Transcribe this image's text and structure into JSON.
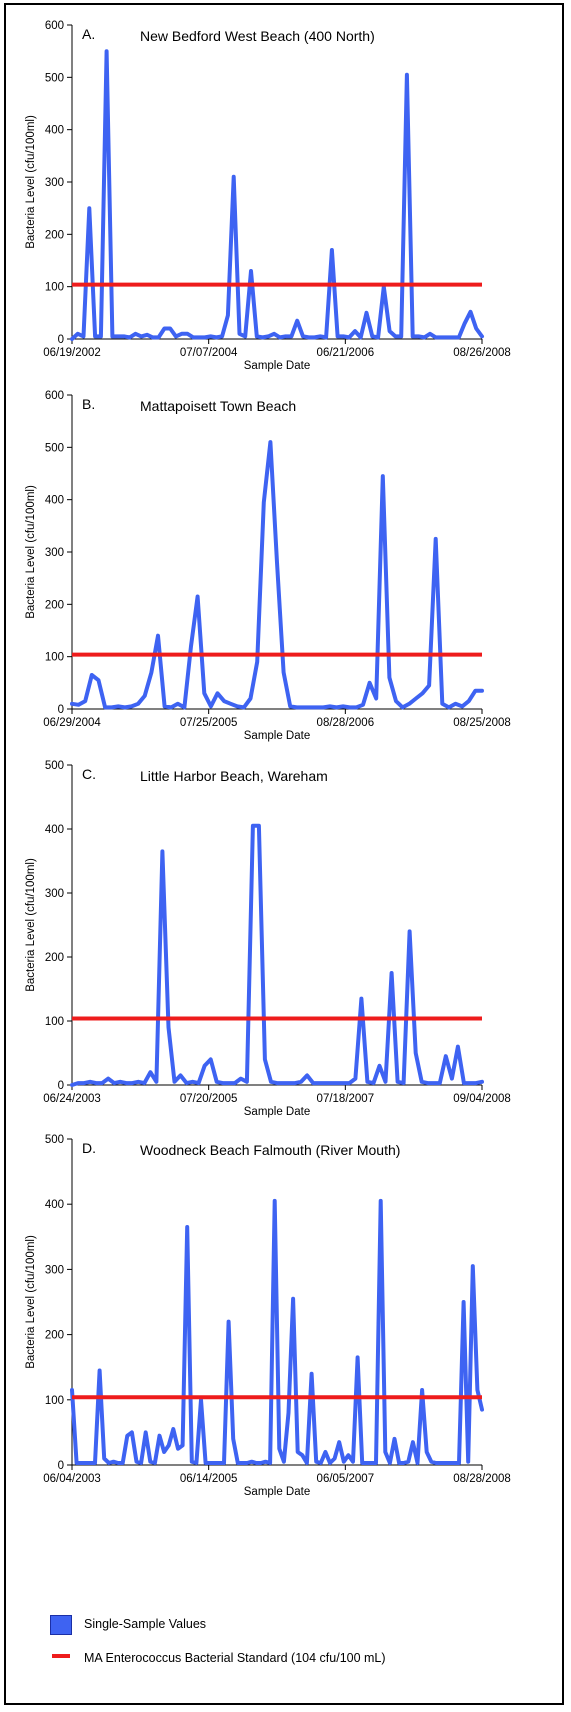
{
  "legend": {
    "series_label": "Single-Sample Values",
    "standard_label": "MA Enterococcus Bacterial Standard (104 cfu/100 mL)"
  },
  "colors": {
    "series": "#3e63f2",
    "standard": "#ee1c1c",
    "axis": "#000000"
  },
  "chart_data": [
    {
      "type": "line",
      "panel_letter": "A.",
      "title": "New Bedford West Beach (400 North)",
      "xlabel": "Sample Date",
      "ylabel": "Bacteria Level (cfu/100ml)",
      "ylim": [
        0,
        600
      ],
      "yticks": [
        0,
        100,
        200,
        300,
        400,
        500,
        600
      ],
      "xtick_labels": [
        "06/19/2002",
        "07/07/2004",
        "06/21/2006",
        "08/26/2008"
      ],
      "standard": 104,
      "values": [
        0,
        10,
        5,
        250,
        5,
        5,
        550,
        5,
        5,
        5,
        3,
        10,
        5,
        8,
        3,
        3,
        20,
        20,
        5,
        10,
        10,
        3,
        3,
        3,
        5,
        3,
        5,
        45,
        310,
        10,
        5,
        130,
        5,
        3,
        5,
        10,
        3,
        5,
        5,
        35,
        5,
        3,
        3,
        5,
        3,
        170,
        5,
        5,
        3,
        15,
        3,
        50,
        5,
        3,
        100,
        15,
        5,
        5,
        505,
        5,
        5,
        3,
        10,
        3,
        3,
        3,
        3,
        3,
        30,
        52,
        20,
        5
      ]
    },
    {
      "type": "line",
      "panel_letter": "B.",
      "title": "Mattapoisett Town Beach",
      "xlabel": "Sample Date",
      "ylabel": "Bacteria Level (cfu/100ml)",
      "ylim": [
        0,
        600
      ],
      "yticks": [
        0,
        100,
        200,
        300,
        400,
        500,
        600
      ],
      "xtick_labels": [
        "06/29/2004",
        "07/25/2005",
        "08/28/2006",
        "08/25/2008"
      ],
      "standard": 104,
      "values": [
        10,
        8,
        15,
        65,
        55,
        3,
        3,
        5,
        3,
        5,
        10,
        25,
        70,
        140,
        5,
        3,
        10,
        3,
        120,
        215,
        30,
        5,
        30,
        15,
        10,
        5,
        3,
        20,
        90,
        395,
        510,
        280,
        70,
        5,
        3,
        3,
        3,
        3,
        3,
        5,
        3,
        5,
        3,
        3,
        8,
        50,
        20,
        445,
        60,
        15,
        3,
        10,
        20,
        30,
        45,
        325,
        10,
        3,
        10,
        5,
        15,
        35,
        35
      ]
    },
    {
      "type": "line",
      "panel_letter": "C.",
      "title": "Little Harbor Beach, Wareham",
      "xlabel": "Sample Date",
      "ylabel": "Bacteria Level (cfu/100ml)",
      "ylim": [
        0,
        500
      ],
      "yticks": [
        0,
        100,
        200,
        300,
        400,
        500
      ],
      "xtick_labels": [
        "06/24/2003",
        "07/20/2005",
        "07/18/2007",
        "09/04/2008"
      ],
      "standard": 104,
      "values": [
        0,
        3,
        3,
        5,
        3,
        3,
        10,
        3,
        5,
        3,
        3,
        5,
        3,
        20,
        5,
        365,
        90,
        5,
        15,
        3,
        5,
        3,
        30,
        40,
        5,
        3,
        3,
        3,
        10,
        5,
        405,
        405,
        40,
        5,
        3,
        3,
        3,
        3,
        5,
        15,
        3,
        3,
        3,
        3,
        3,
        3,
        3,
        10,
        135,
        5,
        3,
        30,
        5,
        175,
        5,
        3,
        240,
        50,
        5,
        3,
        3,
        3,
        45,
        10,
        60,
        3,
        3,
        3,
        5
      ]
    },
    {
      "type": "line",
      "panel_letter": "D.",
      "title": "Woodneck Beach Falmouth (River Mouth)",
      "xlabel": "Sample Date",
      "ylabel": "Bacteria Level (cfu/100ml)",
      "ylim": [
        0,
        500
      ],
      "yticks": [
        0,
        100,
        200,
        300,
        400,
        500
      ],
      "xtick_labels": [
        "06/04/2003",
        "06/14/2005",
        "06/05/2007",
        "08/28/2008"
      ],
      "standard": 104,
      "values": [
        115,
        3,
        3,
        3,
        3,
        3,
        145,
        10,
        3,
        5,
        3,
        3,
        45,
        50,
        5,
        3,
        50,
        5,
        3,
        45,
        20,
        30,
        55,
        25,
        30,
        365,
        5,
        3,
        100,
        3,
        3,
        3,
        3,
        3,
        220,
        40,
        3,
        3,
        3,
        5,
        3,
        3,
        5,
        3,
        405,
        25,
        5,
        80,
        255,
        20,
        15,
        3,
        140,
        5,
        3,
        20,
        3,
        10,
        35,
        5,
        15,
        5,
        165,
        3,
        3,
        3,
        3,
        405,
        20,
        3,
        40,
        3,
        3,
        5,
        35,
        3,
        115,
        20,
        5,
        3,
        3,
        3,
        3,
        3,
        3,
        250,
        5,
        305,
        115,
        85
      ]
    }
  ]
}
